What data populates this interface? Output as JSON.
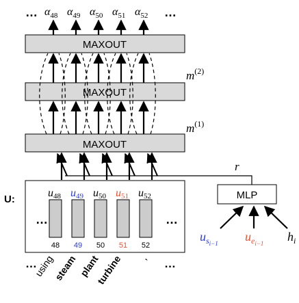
{
  "outputs": {
    "left_ellipsis": "…",
    "right_ellipsis": "…",
    "alphas": [
      "48",
      "49",
      "50",
      "51",
      "52"
    ],
    "alpha_symbol": "α"
  },
  "layers": {
    "top": "MAXOUT",
    "middle": "MAXOUT",
    "bottom": "MAXOUT",
    "m2_base": "m",
    "m2_sup": "(2)",
    "m1_base": "m",
    "m1_sup": "(1)"
  },
  "r_label": "r",
  "U_label": "U:",
  "u_symbol": "u",
  "u_vectors": [
    {
      "sub": "48",
      "index": "48",
      "color": "#000000"
    },
    {
      "sub": "49",
      "index": "49",
      "color": "#2a3bcb"
    },
    {
      "sub": "50",
      "index": "50",
      "color": "#000000"
    },
    {
      "sub": "51",
      "index": "51",
      "color": "#e8502f"
    },
    {
      "sub": "52",
      "index": "52",
      "color": "#000000"
    }
  ],
  "u_left_dots": "…",
  "u_right_dots": "…",
  "mlp": {
    "label": "MLP",
    "inputs": [
      {
        "base": "u",
        "sub": "s",
        "subsub": "i−1",
        "color": "#2a3bcb"
      },
      {
        "base": "u",
        "sub": "e",
        "subsub": "i−1",
        "color": "#e8502f"
      },
      {
        "base": "h",
        "sub": "i",
        "subsub": "",
        "color": "#000000"
      }
    ]
  },
  "words": {
    "left_dots": "…",
    "right_dots": "…",
    "items": [
      {
        "text": "using",
        "bold": false
      },
      {
        "text": "steam",
        "bold": true
      },
      {
        "text": "plant",
        "bold": true
      },
      {
        "text": "turbine",
        "bold": true
      },
      {
        "text": ",",
        "bold": false
      }
    ]
  },
  "colors": {
    "blue": "#2a3bcb",
    "orange": "#e8502f",
    "box_fill": "#d9d9d9",
    "cell_fill": "#cccccc"
  }
}
